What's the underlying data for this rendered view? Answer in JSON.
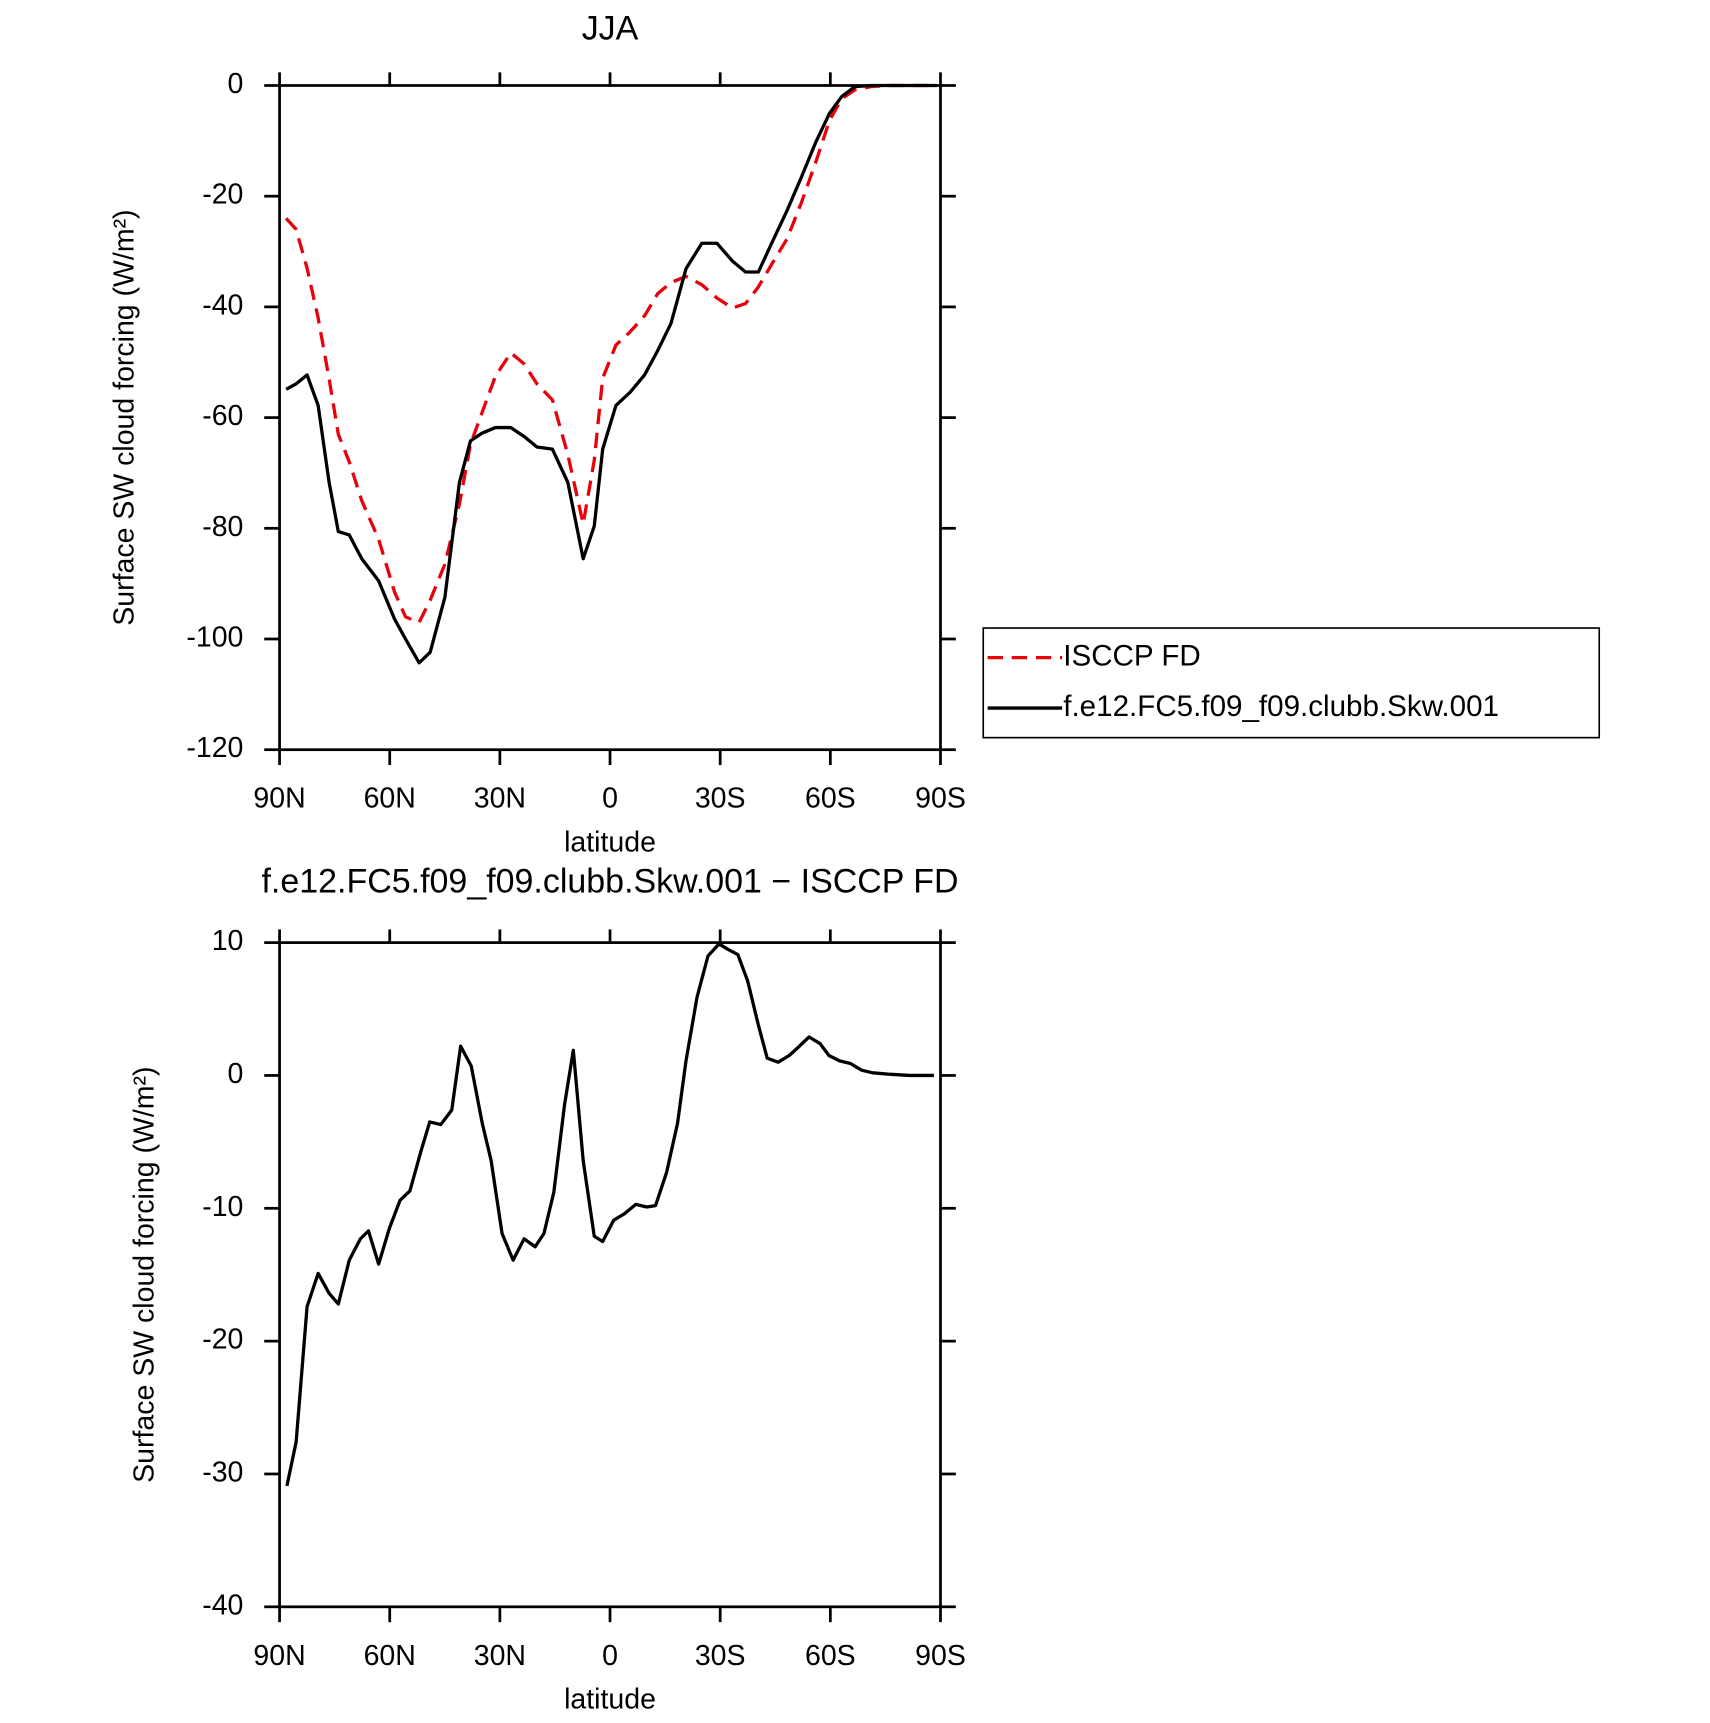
{
  "chart_data": [
    {
      "type": "line",
      "title": "JJA",
      "x_label": "latitude",
      "y_label": "Surface SW cloud forcing (W/m²)",
      "x": [
        88.2,
        85.5,
        82.5,
        79.5,
        76.5,
        74,
        71,
        67.6,
        63,
        58.7,
        55.7,
        52,
        49,
        45,
        41,
        38,
        34.8,
        31.2,
        27,
        23.4,
        19.9,
        15.7,
        11.5,
        7.3,
        4.3,
        2,
        -1.6,
        -5.5,
        -9.4,
        -13,
        -16.6,
        -20.7,
        -25,
        -29.1,
        -33.3,
        -36.9,
        -40.4,
        -44.3,
        -48.2,
        -52.1,
        -56,
        -59.8,
        -63.1,
        -66.7,
        -71,
        -75.7,
        -81.6,
        -89
      ],
      "series": [
        {
          "name": "ISCCP FD",
          "color": "#e8000b",
          "dash": true,
          "values": [
            -24,
            -26,
            -33,
            -42,
            -53,
            -63,
            -68,
            -75,
            -82,
            -91.5,
            -96,
            -97,
            -93,
            -86.5,
            -75.6,
            -64.8,
            -59,
            -52.5,
            -48.3,
            -50.3,
            -53.9,
            -56.8,
            -66.7,
            -79.2,
            -67.7,
            -52.9,
            -46.9,
            -44.5,
            -41.6,
            -37.6,
            -35.6,
            -34.5,
            -36,
            -38.4,
            -40.2,
            -39.4,
            -36.4,
            -32,
            -27.7,
            -21.2,
            -13.9,
            -6.3,
            -2.4,
            -0.8,
            -0.2,
            0,
            0,
            0
          ]
        },
        {
          "name": "f.e12.FC5.f09_f09.clubb.Skw.001",
          "color": "#000000",
          "dash": false,
          "values": [
            -54.9,
            -53.9,
            -52.3,
            -57.8,
            -71.7,
            -80.6,
            -81.2,
            -85.5,
            -89.5,
            -96.4,
            -100,
            -104.3,
            -102.4,
            -92.5,
            -71.7,
            -64.2,
            -62.8,
            -61.8,
            -61.8,
            -63.4,
            -65.3,
            -65.7,
            -71.7,
            -85.5,
            -79.6,
            -65.7,
            -57.8,
            -55.4,
            -52.3,
            -47.9,
            -43,
            -33.1,
            -28.5,
            -28.5,
            -31.7,
            -33.7,
            -33.7,
            -28.1,
            -22.6,
            -16.6,
            -10.3,
            -5,
            -2,
            -0.2,
            0,
            0,
            0,
            0
          ]
        }
      ],
      "xlim": [
        90,
        -90
      ],
      "xticks": [
        {
          "value": 90,
          "label": "90N"
        },
        {
          "value": 60,
          "label": "60N"
        },
        {
          "value": 30,
          "label": "30N"
        },
        0,
        {
          "value": -30,
          "label": "30S"
        },
        {
          "value": -60,
          "label": "60S"
        },
        {
          "value": -90,
          "label": "90S"
        }
      ],
      "ylim": [
        -120,
        0
      ],
      "yticks": [
        -120,
        -100,
        -80,
        -60,
        -40,
        -20,
        0
      ],
      "legend": "right"
    },
    {
      "type": "line",
      "title": "f.e12.FC5.f09_f09.clubb.Skw.001 − ISCCP FD",
      "x_label": "latitude",
      "y_label": "Surface SW cloud forcing (W/m²)",
      "x": [
        88,
        85.5,
        82.5,
        79.5,
        76.5,
        74,
        71,
        68,
        65.8,
        63,
        60.1,
        57.2,
        54.5,
        51.5,
        49.1,
        46.1,
        43.1,
        40.7,
        37.8,
        34.8,
        32.4,
        29.4,
        26.4,
        23.4,
        20.4,
        18,
        15.3,
        12.4,
        10,
        7.3,
        4.3,
        2,
        -1,
        -4,
        -7,
        -10,
        -12.4,
        -15.4,
        -18.4,
        -20.7,
        -23.7,
        -26.7,
        -29.7,
        -32.1,
        -34.8,
        -37.5,
        -40.4,
        -42.8,
        -45.8,
        -48.8,
        -51.2,
        -54.2,
        -57.2,
        -59.6,
        -62.5,
        -65.5,
        -68.5,
        -71.5,
        -75.7,
        -81.6,
        -88.2
      ],
      "color": "#000000",
      "values": [
        -30.9,
        -27.6,
        -17.4,
        -14.9,
        -16.4,
        -17.2,
        -13.9,
        -12.3,
        -11.7,
        -14.2,
        -11.5,
        -9.4,
        -8.7,
        -5.7,
        -3.5,
        -3.7,
        -2.6,
        2.2,
        0.7,
        -3.6,
        -6.4,
        -11.9,
        -13.9,
        -12.3,
        -12.9,
        -11.9,
        -8.8,
        -2.2,
        1.9,
        -6.4,
        -12.1,
        -12.5,
        -10.9,
        -10.4,
        -9.7,
        -9.9,
        -9.8,
        -7.3,
        -3.6,
        1.1,
        5.9,
        9,
        9.9,
        9.5,
        9.1,
        7.1,
        3.8,
        1.3,
        1,
        1.5,
        2.1,
        2.9,
        2.4,
        1.5,
        1.1,
        0.9,
        0.4,
        0.2,
        0.1,
        0,
        0
      ],
      "xlim": [
        90,
        -90
      ],
      "xticks": [
        {
          "value": 90,
          "label": "90N"
        },
        {
          "value": 60,
          "label": "60N"
        },
        {
          "value": 30,
          "label": "30N"
        },
        0,
        {
          "value": -30,
          "label": "30S"
        },
        {
          "value": -60,
          "label": "60S"
        },
        {
          "value": -90,
          "label": "90S"
        }
      ],
      "ylim": [
        -40,
        10
      ],
      "yticks": [
        -40,
        -30,
        -20,
        -10,
        0,
        10
      ]
    }
  ]
}
